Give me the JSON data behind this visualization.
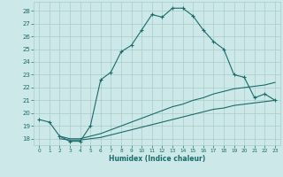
{
  "xlabel": "Humidex (Indice chaleur)",
  "xlim": [
    -0.5,
    23.5
  ],
  "ylim": [
    17.5,
    28.7
  ],
  "yticks": [
    18,
    19,
    20,
    21,
    22,
    23,
    24,
    25,
    26,
    27,
    28
  ],
  "xticks": [
    0,
    1,
    2,
    3,
    4,
    5,
    6,
    7,
    8,
    9,
    10,
    11,
    12,
    13,
    14,
    15,
    16,
    17,
    18,
    19,
    20,
    21,
    22,
    23
  ],
  "bg_color": "#cce8e8",
  "grid_color": "#aacccc",
  "line_color": "#1a6b6b",
  "line1_x": [
    0,
    1,
    2,
    3,
    4,
    5,
    6,
    7,
    8,
    9,
    10,
    11,
    12,
    13,
    14,
    15,
    16,
    17,
    18,
    19,
    20,
    21,
    22,
    23
  ],
  "line1_y": [
    19.5,
    19.3,
    18.2,
    17.8,
    17.8,
    19.0,
    22.6,
    23.2,
    24.8,
    25.3,
    26.5,
    27.7,
    27.5,
    28.2,
    28.2,
    27.6,
    26.5,
    25.6,
    25.0,
    23.0,
    22.8,
    21.2,
    21.5,
    21.0
  ],
  "line2_x": [
    2,
    3,
    4,
    5,
    6,
    7,
    8,
    9,
    10,
    11,
    12,
    13,
    14,
    15,
    16,
    17,
    18,
    19,
    20,
    21,
    22,
    23
  ],
  "line2_y": [
    18.2,
    18.0,
    18.0,
    18.2,
    18.4,
    18.7,
    19.0,
    19.3,
    19.6,
    19.9,
    20.2,
    20.5,
    20.7,
    21.0,
    21.2,
    21.5,
    21.7,
    21.9,
    22.0,
    22.1,
    22.2,
    22.4
  ],
  "line3_x": [
    2,
    3,
    4,
    5,
    6,
    7,
    8,
    9,
    10,
    11,
    12,
    13,
    14,
    15,
    16,
    17,
    18,
    19,
    20,
    21,
    22,
    23
  ],
  "line3_y": [
    18.0,
    17.9,
    17.9,
    18.0,
    18.1,
    18.3,
    18.5,
    18.7,
    18.9,
    19.1,
    19.3,
    19.5,
    19.7,
    19.9,
    20.1,
    20.3,
    20.4,
    20.6,
    20.7,
    20.8,
    20.9,
    21.0
  ]
}
